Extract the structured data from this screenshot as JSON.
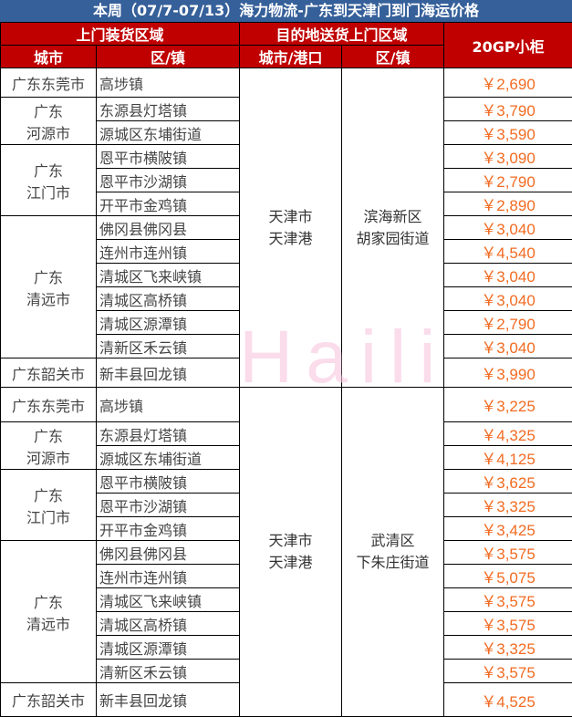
{
  "title": "本周（07/7-07/13）海力物流-广东到天津门到门海运价格",
  "headers": {
    "pickup_area": "上门装货区域",
    "dest_area": "目的地送货上门区域",
    "price_col": "20GP小柜",
    "city": "城市",
    "town": "区/镇",
    "dest_city": "城市/港口",
    "dest_town": "区/镇"
  },
  "watermark": "Haili",
  "colors": {
    "title_bg": "#36609a",
    "header_bg": "#c00000",
    "price": "#f26b22"
  },
  "blocks": [
    {
      "dest_city": "天津市\n天津港",
      "dest_town": "滨海新区\n胡家园街道",
      "groups": [
        {
          "city": "广东东莞市",
          "rows": [
            {
              "town": "高埗镇",
              "price": "￥2,690"
            }
          ]
        },
        {
          "city": "广东\n河源市",
          "rows": [
            {
              "town": "东源县灯塔镇",
              "price": "￥3,790"
            },
            {
              "town": "源城区东埔街道",
              "price": "￥3,590"
            }
          ]
        },
        {
          "city": "广东\n江门市",
          "rows": [
            {
              "town": "恩平市横陂镇",
              "price": "￥3,090"
            },
            {
              "town": "恩平市沙湖镇",
              "price": "￥2,790"
            },
            {
              "town": "开平市金鸡镇",
              "price": "￥2,890"
            }
          ]
        },
        {
          "city": "广东\n清远市",
          "rows": [
            {
              "town": "佛冈县佛冈县",
              "price": "￥3,040"
            },
            {
              "town": "连州市连州镇",
              "price": "￥4,540"
            },
            {
              "town": "清城区飞来峡镇",
              "price": "￥3,040"
            },
            {
              "town": "清城区高桥镇",
              "price": "￥3,040"
            },
            {
              "town": "清城区源潭镇",
              "price": "￥2,790"
            },
            {
              "town": "清新区禾云镇",
              "price": "￥3,040"
            }
          ]
        },
        {
          "city": "广东韶关市",
          "rows": [
            {
              "town": "新丰县回龙镇",
              "price": "￥3,990"
            }
          ]
        }
      ]
    },
    {
      "dest_city": "天津市\n天津港",
      "dest_town": "武清区\n下朱庄街道",
      "groups": [
        {
          "city": "广东东莞市",
          "rows": [
            {
              "town": "高埗镇",
              "price": "￥3,225"
            }
          ]
        },
        {
          "city": "广东\n河源市",
          "rows": [
            {
              "town": "东源县灯塔镇",
              "price": "￥4,325"
            },
            {
              "town": "源城区东埔街道",
              "price": "￥4,125"
            }
          ]
        },
        {
          "city": "广东\n江门市",
          "rows": [
            {
              "town": "恩平市横陂镇",
              "price": "￥3,625"
            },
            {
              "town": "恩平市沙湖镇",
              "price": "￥3,325"
            },
            {
              "town": "开平市金鸡镇",
              "price": "￥3,425"
            }
          ]
        },
        {
          "city": "广东\n清远市",
          "rows": [
            {
              "town": "佛冈县佛冈县",
              "price": "￥3,575"
            },
            {
              "town": "连州市连州镇",
              "price": "￥5,075"
            },
            {
              "town": "清城区飞来峡镇",
              "price": "￥3,575"
            },
            {
              "town": "清城区高桥镇",
              "price": "￥3,575"
            },
            {
              "town": "清城区源潭镇",
              "price": "￥3,325"
            },
            {
              "town": "清新区禾云镇",
              "price": "￥3,575"
            }
          ]
        },
        {
          "city": "广东韶关市",
          "rows": [
            {
              "town": "新丰县回龙镇",
              "price": "￥4,525"
            }
          ]
        }
      ]
    }
  ]
}
